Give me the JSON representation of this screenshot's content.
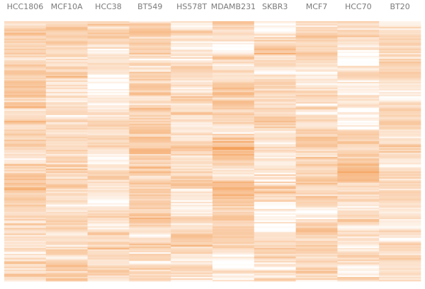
{
  "chart_data": {
    "type": "heatmap",
    "title": "",
    "xlabel": "",
    "ylabel": "",
    "columns": [
      "HCC1806",
      "MCF10A",
      "HCC38",
      "BT549",
      "HS578T",
      "MDAMB231",
      "SKBR3",
      "MCF7",
      "HCC70",
      "BT20"
    ],
    "row_count": 180,
    "value_range": [
      0,
      1
    ],
    "color_scale": {
      "low": "#ffffff",
      "high": "#f4a05a"
    },
    "column_means": [
      0.42,
      0.44,
      0.34,
      0.46,
      0.36,
      0.4,
      0.33,
      0.38,
      0.36,
      0.31
    ],
    "column_std": [
      0.14,
      0.14,
      0.12,
      0.14,
      0.14,
      0.13,
      0.15,
      0.13,
      0.12,
      0.12
    ]
  }
}
